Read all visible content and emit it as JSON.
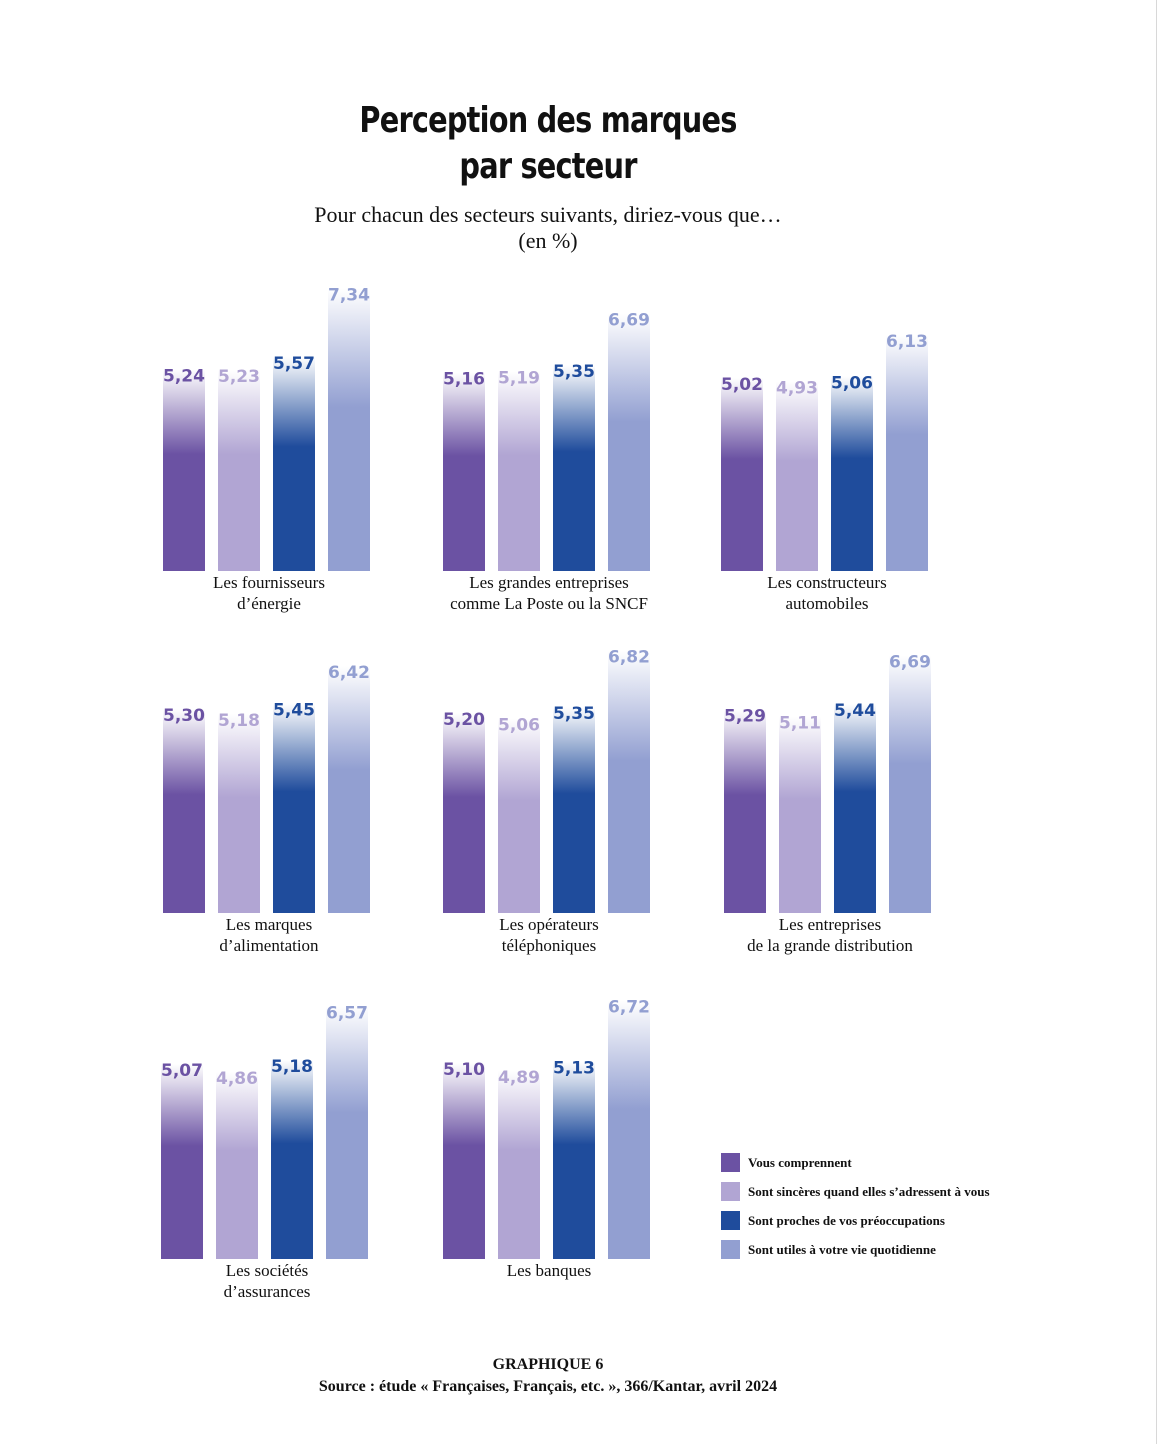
{
  "title": {
    "line1": "Perception des marques",
    "line2": "par secteur"
  },
  "subtitle": {
    "line1": "Pour chacun des secteurs suivants, diriez-vous que…",
    "line2": "(en %)"
  },
  "colors": [
    "#6b52a3",
    "#b1a5d3",
    "#1f4c9c",
    "#929fd1"
  ],
  "chart_data": [
    {
      "type": "bar",
      "category": "Les fournisseurs d’énergie",
      "label_lines": [
        "Les fournisseurs",
        "d’énergie"
      ],
      "values": [
        5.24,
        5.23,
        5.57,
        7.34
      ],
      "value_labels": [
        "5,24",
        "5,23",
        "5,57",
        "7,34"
      ]
    },
    {
      "type": "bar",
      "category": "Les grandes entreprises comme La Poste ou la SNCF",
      "label_lines": [
        "Les grandes entreprises",
        "comme La Poste ou la SNCF"
      ],
      "values": [
        5.16,
        5.19,
        5.35,
        6.69
      ],
      "value_labels": [
        "5,16",
        "5,19",
        "5,35",
        "6,69"
      ]
    },
    {
      "type": "bar",
      "category": "Les constructeurs automobiles",
      "label_lines": [
        "Les constructeurs",
        "automobiles"
      ],
      "values": [
        5.02,
        4.93,
        5.06,
        6.13
      ],
      "value_labels": [
        "5,02",
        "4,93",
        "5,06",
        "6,13"
      ]
    },
    {
      "type": "bar",
      "category": "Les marques d’alimentation",
      "label_lines": [
        "Les marques",
        "d’alimentation"
      ],
      "values": [
        5.3,
        5.18,
        5.45,
        6.42
      ],
      "value_labels": [
        "5,30",
        "5,18",
        "5,45",
        "6,42"
      ]
    },
    {
      "type": "bar",
      "category": "Les opérateurs téléphoniques",
      "label_lines": [
        "Les opérateurs",
        "téléphoniques"
      ],
      "values": [
        5.2,
        5.06,
        5.35,
        6.82
      ],
      "value_labels": [
        "5,20",
        "5,06",
        "5,35",
        "6,82"
      ]
    },
    {
      "type": "bar",
      "category": "Les entreprises de la grande distribution",
      "label_lines": [
        "Les entreprises",
        "de la grande distribution"
      ],
      "values": [
        5.29,
        5.11,
        5.44,
        6.69
      ],
      "value_labels": [
        "5,29",
        "5,11",
        "5,44",
        "6,69"
      ]
    },
    {
      "type": "bar",
      "category": "Les sociétés d’assurances",
      "label_lines": [
        "Les sociétés",
        "d’assurances"
      ],
      "values": [
        5.07,
        4.86,
        5.18,
        6.57
      ],
      "value_labels": [
        "5,07",
        "4,86",
        "5,18",
        "6,57"
      ]
    },
    {
      "type": "bar",
      "category": "Les banques",
      "label_lines": [
        "Les banques"
      ],
      "values": [
        5.1,
        4.89,
        5.13,
        6.72
      ],
      "value_labels": [
        "5,10",
        "4,89",
        "5,13",
        "6,72"
      ]
    }
  ],
  "legend": [
    "Vous comprennent",
    "Sont sincères quand elles s’adressent à vous",
    "Sont proches de vos préoccupations",
    "Sont utiles à votre vie quotidienne"
  ],
  "footer": {
    "line1": "GRAPHIQUE 6",
    "line2": "Source : étude « Françaises, Français, etc. », 366/Kantar, avril 2024"
  }
}
